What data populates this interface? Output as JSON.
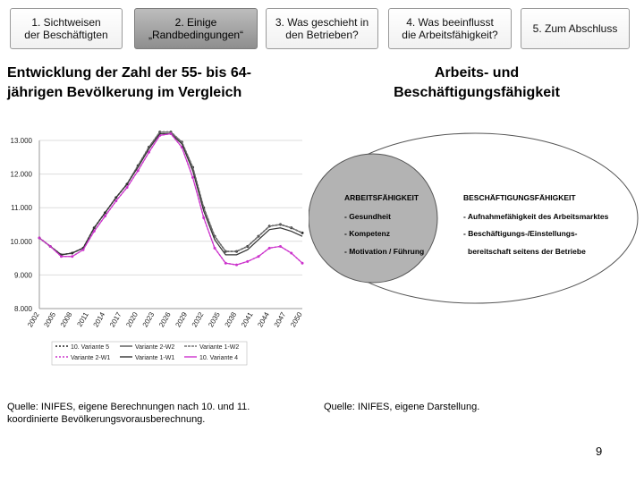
{
  "nav": {
    "tabs": [
      {
        "label": "1. Sichtweisen\nder Beschäftigten",
        "active": false
      },
      {
        "label": "2. Einige\n„Randbedingungen“",
        "active": true
      },
      {
        "label": "3. Was geschieht in\nden Betrieben?",
        "active": false
      },
      {
        "label": "4. Was beeinflusst\ndie Arbeitsfähigkeit?",
        "active": false
      },
      {
        "label": "5. Zum Abschluss",
        "active": false
      }
    ]
  },
  "left": {
    "heading": "Entwicklung der Zahl der 55- bis 64-jährigen Bevölkerung im Vergleich",
    "source": "Quelle: INIFES, eigene Berechnungen nach 10. und 11. koordinierte Bevölkerungsvorausberechnung."
  },
  "right": {
    "heading": "Arbeits- und Beschäftigungsfähigkeit",
    "source": "Quelle: INIFES, eigene Darstellung.",
    "diagram": {
      "inner_title": "ARBEITSFÄHIGKEIT",
      "inner_items": [
        "- Gesundheit",
        "- Kompetenz",
        "- Motivation / Führung"
      ],
      "outer_title": "BESCHÄFTIGUNGSFÄHIGKEIT",
      "outer_items": [
        "- Aufnahmefähigkeit des Arbeitsmarktes",
        "- Beschäftigungs-/Einstellungs-",
        "bereitschaft seitens der Betriebe"
      ]
    }
  },
  "page_number": "9",
  "colors": {
    "active_tab": "#a6a6a6",
    "black_series": "#222222",
    "magenta_series": "#cc33cc",
    "inner_circle": "#b3b3b3"
  },
  "chart_data": {
    "type": "line",
    "title": "",
    "xlabel": "",
    "ylabel": "",
    "ylim": [
      8000,
      13000
    ],
    "yticks": [
      "13.000",
      "12.000",
      "11.000",
      "10.000",
      "9.000",
      "8.000"
    ],
    "xticks": [
      "2002",
      "2005",
      "2008",
      "2011",
      "2014",
      "2017",
      "2020",
      "2023",
      "2026",
      "2029",
      "2032",
      "2035",
      "2038",
      "2041",
      "2044",
      "2047",
      "2050"
    ],
    "x": [
      2002,
      2004,
      2006,
      2008,
      2010,
      2012,
      2014,
      2016,
      2018,
      2020,
      2022,
      2024,
      2026,
      2028,
      2030,
      2032,
      2034,
      2036,
      2038,
      2040,
      2042,
      2044,
      2046,
      2048,
      2050
    ],
    "series": [
      {
        "name": "10. Variante 5",
        "values": [
          10100,
          9850,
          9600,
          9650,
          9800,
          10400,
          10850,
          11300,
          11700,
          12250,
          12800,
          13250,
          13250,
          12950,
          12200,
          11000,
          10150,
          9700,
          9700,
          9850,
          10150,
          10450,
          10500,
          10400,
          10250
        ]
      },
      {
        "name": "Variante 2-W2",
        "values": [
          10100,
          9850,
          9600,
          9650,
          9800,
          10400,
          10850,
          11300,
          11700,
          12250,
          12800,
          13250,
          13250,
          12950,
          12200,
          11000,
          10150,
          9700,
          9700,
          9850,
          10150,
          10450,
          10500,
          10400,
          10250
        ]
      },
      {
        "name": "Variante 1-W2",
        "values": [
          10100,
          9850,
          9600,
          9650,
          9800,
          10400,
          10850,
          11300,
          11700,
          12250,
          12800,
          13250,
          13250,
          12950,
          12200,
          11000,
          10150,
          9700,
          9700,
          9850,
          10150,
          10450,
          10500,
          10400,
          10250
        ]
      },
      {
        "name": "Variante 2-W1",
        "values": [
          10100,
          9850,
          9550,
          9550,
          9750,
          10300,
          10750,
          11200,
          11600,
          12100,
          12650,
          13150,
          13200,
          12800,
          11900,
          10700,
          9800,
          9350,
          9300,
          9400,
          9550,
          9800,
          9850,
          9650,
          9350
        ]
      },
      {
        "name": "Variante 1-W1",
        "values": [
          10100,
          9850,
          9600,
          9650,
          9800,
          10400,
          10850,
          11300,
          11700,
          12200,
          12750,
          13200,
          13200,
          12900,
          12100,
          10900,
          10050,
          9600,
          9600,
          9750,
          10050,
          10350,
          10400,
          10300,
          10150
        ]
      },
      {
        "name": "10. Variante 4",
        "values": [
          10100,
          9850,
          9550,
          9550,
          9750,
          10300,
          10750,
          11200,
          11600,
          12100,
          12650,
          13150,
          13200,
          12800,
          11900,
          10700,
          9800,
          9350,
          9300,
          9400,
          9550,
          9800,
          9850,
          9650,
          9350
        ]
      }
    ],
    "legend_position": "bottom"
  }
}
